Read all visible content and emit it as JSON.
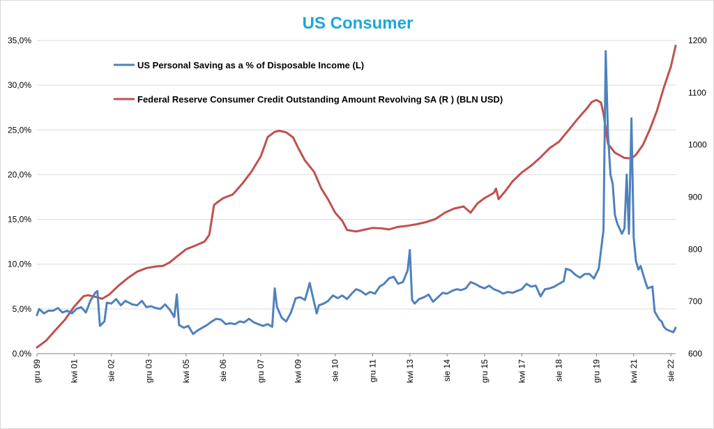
{
  "chart_data": {
    "type": "line",
    "title": "US Consumer",
    "title_color": "#1aa7d8",
    "axis_left": {
      "min": 0,
      "max": 35,
      "step": 5,
      "ticks": [
        "0,0%",
        "5,0%",
        "10,0%",
        "15,0%",
        "20,0%",
        "25,0%",
        "30,0%",
        "35,0%"
      ]
    },
    "axis_right": {
      "min": 600,
      "max": 1200,
      "step": 100,
      "ticks": [
        "600",
        "700",
        "800",
        "900",
        "1000",
        "1100",
        "1200"
      ]
    },
    "x_range": [
      1999.92,
      2022.75
    ],
    "x_ticks": [
      {
        "label": "gru 99",
        "x": 1999.92
      },
      {
        "label": "kwi 01",
        "x": 2001.25
      },
      {
        "label": "sie 02",
        "x": 2002.58
      },
      {
        "label": "gru 03",
        "x": 2003.92
      },
      {
        "label": "kwi 05",
        "x": 2005.25
      },
      {
        "label": "sie 06",
        "x": 2006.58
      },
      {
        "label": "gru 07",
        "x": 2007.92
      },
      {
        "label": "kwi 09",
        "x": 2009.25
      },
      {
        "label": "sie 10",
        "x": 2010.58
      },
      {
        "label": "gru 11",
        "x": 2011.92
      },
      {
        "label": "kwi 13",
        "x": 2013.25
      },
      {
        "label": "sie 14",
        "x": 2014.58
      },
      {
        "label": "gru 15",
        "x": 2015.92
      },
      {
        "label": "kwi 17",
        "x": 2017.25
      },
      {
        "label": "sie 18",
        "x": 2018.58
      },
      {
        "label": "gru 19",
        "x": 2019.92
      },
      {
        "label": "kwi 21",
        "x": 2021.25
      },
      {
        "label": "sie 22",
        "x": 2022.58
      }
    ],
    "grid": "horizontal",
    "legend_position": "top-left",
    "series": [
      {
        "name": "US Personal Saving as a % of Disposable Income (L)",
        "axis": "left",
        "color": "#4f81bd",
        "points": [
          [
            1999.92,
            4.3
          ],
          [
            2000.0,
            5.0
          ],
          [
            2000.17,
            4.5
          ],
          [
            2000.33,
            4.8
          ],
          [
            2000.5,
            4.8
          ],
          [
            2000.67,
            5.1
          ],
          [
            2000.83,
            4.6
          ],
          [
            2001.0,
            4.8
          ],
          [
            2001.17,
            4.5
          ],
          [
            2001.33,
            5.0
          ],
          [
            2001.5,
            5.2
          ],
          [
            2001.67,
            4.6
          ],
          [
            2001.83,
            5.9
          ],
          [
            2002.0,
            6.8
          ],
          [
            2002.08,
            7.0
          ],
          [
            2002.17,
            3.1
          ],
          [
            2002.33,
            3.6
          ],
          [
            2002.42,
            5.7
          ],
          [
            2002.58,
            5.6
          ],
          [
            2002.75,
            6.1
          ],
          [
            2002.92,
            5.4
          ],
          [
            2003.08,
            5.9
          ],
          [
            2003.33,
            5.5
          ],
          [
            2003.5,
            5.4
          ],
          [
            2003.67,
            5.9
          ],
          [
            2003.83,
            5.2
          ],
          [
            2004.0,
            5.3
          ],
          [
            2004.17,
            5.1
          ],
          [
            2004.33,
            5.0
          ],
          [
            2004.5,
            5.5
          ],
          [
            2004.67,
            4.9
          ],
          [
            2004.83,
            4.1
          ],
          [
            2004.92,
            6.6
          ],
          [
            2005.0,
            3.2
          ],
          [
            2005.17,
            2.9
          ],
          [
            2005.33,
            3.1
          ],
          [
            2005.5,
            2.2
          ],
          [
            2005.67,
            2.6
          ],
          [
            2005.83,
            2.9
          ],
          [
            2006.0,
            3.2
          ],
          [
            2006.17,
            3.6
          ],
          [
            2006.33,
            3.9
          ],
          [
            2006.5,
            3.8
          ],
          [
            2006.67,
            3.3
          ],
          [
            2006.83,
            3.4
          ],
          [
            2007.0,
            3.3
          ],
          [
            2007.17,
            3.6
          ],
          [
            2007.33,
            3.5
          ],
          [
            2007.5,
            3.9
          ],
          [
            2007.67,
            3.5
          ],
          [
            2007.83,
            3.3
          ],
          [
            2008.0,
            3.1
          ],
          [
            2008.17,
            3.3
          ],
          [
            2008.33,
            3.0
          ],
          [
            2008.42,
            7.3
          ],
          [
            2008.5,
            5.2
          ],
          [
            2008.67,
            4.0
          ],
          [
            2008.83,
            3.6
          ],
          [
            2009.0,
            4.6
          ],
          [
            2009.17,
            6.2
          ],
          [
            2009.33,
            6.3
          ],
          [
            2009.5,
            6.0
          ],
          [
            2009.67,
            7.9
          ],
          [
            2009.83,
            5.7
          ],
          [
            2009.92,
            4.5
          ],
          [
            2010.0,
            5.4
          ],
          [
            2010.17,
            5.6
          ],
          [
            2010.33,
            5.9
          ],
          [
            2010.5,
            6.5
          ],
          [
            2010.67,
            6.2
          ],
          [
            2010.83,
            6.5
          ],
          [
            2011.0,
            6.1
          ],
          [
            2011.17,
            6.7
          ],
          [
            2011.33,
            7.2
          ],
          [
            2011.5,
            7.0
          ],
          [
            2011.67,
            6.6
          ],
          [
            2011.83,
            6.9
          ],
          [
            2012.0,
            6.7
          ],
          [
            2012.17,
            7.5
          ],
          [
            2012.33,
            7.8
          ],
          [
            2012.5,
            8.4
          ],
          [
            2012.67,
            8.6
          ],
          [
            2012.83,
            7.8
          ],
          [
            2013.0,
            8.0
          ],
          [
            2013.17,
            9.3
          ],
          [
            2013.25,
            11.6
          ],
          [
            2013.33,
            6.0
          ],
          [
            2013.42,
            5.6
          ],
          [
            2013.58,
            6.1
          ],
          [
            2013.75,
            6.3
          ],
          [
            2013.92,
            6.6
          ],
          [
            2014.08,
            5.8
          ],
          [
            2014.25,
            6.3
          ],
          [
            2014.42,
            6.8
          ],
          [
            2014.58,
            6.7
          ],
          [
            2014.75,
            7.0
          ],
          [
            2014.92,
            7.2
          ],
          [
            2015.08,
            7.1
          ],
          [
            2015.25,
            7.3
          ],
          [
            2015.42,
            8.0
          ],
          [
            2015.58,
            7.8
          ],
          [
            2015.75,
            7.5
          ],
          [
            2015.92,
            7.3
          ],
          [
            2016.08,
            7.6
          ],
          [
            2016.25,
            7.2
          ],
          [
            2016.42,
            7.0
          ],
          [
            2016.58,
            6.7
          ],
          [
            2016.75,
            6.9
          ],
          [
            2016.92,
            6.8
          ],
          [
            2017.08,
            7.0
          ],
          [
            2017.25,
            7.2
          ],
          [
            2017.42,
            7.8
          ],
          [
            2017.58,
            7.5
          ],
          [
            2017.75,
            7.6
          ],
          [
            2017.92,
            6.4
          ],
          [
            2018.08,
            7.2
          ],
          [
            2018.25,
            7.3
          ],
          [
            2018.42,
            7.5
          ],
          [
            2018.58,
            7.8
          ],
          [
            2018.75,
            8.1
          ],
          [
            2018.83,
            9.5
          ],
          [
            2019.0,
            9.3
          ],
          [
            2019.17,
            8.8
          ],
          [
            2019.33,
            8.5
          ],
          [
            2019.5,
            8.9
          ],
          [
            2019.67,
            8.9
          ],
          [
            2019.83,
            8.4
          ],
          [
            2019.92,
            9.0
          ],
          [
            2020.0,
            9.5
          ],
          [
            2020.17,
            13.8
          ],
          [
            2020.25,
            33.8
          ],
          [
            2020.33,
            24.6
          ],
          [
            2020.42,
            20.0
          ],
          [
            2020.5,
            19.0
          ],
          [
            2020.58,
            15.5
          ],
          [
            2020.67,
            14.5
          ],
          [
            2020.83,
            13.4
          ],
          [
            2020.92,
            14.0
          ],
          [
            2021.0,
            20.0
          ],
          [
            2021.08,
            13.4
          ],
          [
            2021.17,
            26.3
          ],
          [
            2021.25,
            13.0
          ],
          [
            2021.33,
            10.4
          ],
          [
            2021.42,
            9.4
          ],
          [
            2021.5,
            9.8
          ],
          [
            2021.67,
            8.0
          ],
          [
            2021.75,
            7.3
          ],
          [
            2021.92,
            7.5
          ],
          [
            2022.0,
            4.7
          ],
          [
            2022.17,
            3.8
          ],
          [
            2022.25,
            3.6
          ],
          [
            2022.33,
            3.0
          ],
          [
            2022.42,
            2.7
          ],
          [
            2022.58,
            2.5
          ],
          [
            2022.67,
            2.4
          ],
          [
            2022.75,
            2.9
          ]
        ]
      },
      {
        "name": "Federal Reserve Consumer Credit Outstanding Amount Revolving SA (R ) (BLN USD)",
        "axis": "right",
        "color": "#c0504d",
        "points": [
          [
            1999.92,
            612
          ],
          [
            2000.25,
            625
          ],
          [
            2000.58,
            645
          ],
          [
            2000.92,
            665
          ],
          [
            2001.25,
            690
          ],
          [
            2001.58,
            710
          ],
          [
            2001.75,
            712
          ],
          [
            2002.08,
            708
          ],
          [
            2002.25,
            705
          ],
          [
            2002.5,
            713
          ],
          [
            2002.83,
            730
          ],
          [
            2003.17,
            745
          ],
          [
            2003.5,
            757
          ],
          [
            2003.83,
            764
          ],
          [
            2004.17,
            767
          ],
          [
            2004.42,
            768
          ],
          [
            2004.67,
            775
          ],
          [
            2004.92,
            786
          ],
          [
            2005.25,
            800
          ],
          [
            2005.58,
            807
          ],
          [
            2005.92,
            815
          ],
          [
            2006.08,
            828
          ],
          [
            2006.25,
            885
          ],
          [
            2006.42,
            892
          ],
          [
            2006.58,
            898
          ],
          [
            2006.92,
            905
          ],
          [
            2007.25,
            925
          ],
          [
            2007.58,
            948
          ],
          [
            2007.92,
            978
          ],
          [
            2008.17,
            1015
          ],
          [
            2008.42,
            1025
          ],
          [
            2008.58,
            1027
          ],
          [
            2008.83,
            1024
          ],
          [
            2009.08,
            1014
          ],
          [
            2009.25,
            995
          ],
          [
            2009.5,
            970
          ],
          [
            2009.83,
            948
          ],
          [
            2010.08,
            917
          ],
          [
            2010.33,
            895
          ],
          [
            2010.58,
            870
          ],
          [
            2010.83,
            855
          ],
          [
            2011.0,
            837
          ],
          [
            2011.33,
            834
          ],
          [
            2011.67,
            838
          ],
          [
            2011.92,
            841
          ],
          [
            2012.25,
            840
          ],
          [
            2012.5,
            838
          ],
          [
            2012.83,
            843
          ],
          [
            2013.17,
            845
          ],
          [
            2013.5,
            848
          ],
          [
            2013.83,
            852
          ],
          [
            2014.17,
            858
          ],
          [
            2014.5,
            870
          ],
          [
            2014.83,
            878
          ],
          [
            2015.17,
            882
          ],
          [
            2015.42,
            870
          ],
          [
            2015.67,
            888
          ],
          [
            2015.92,
            898
          ],
          [
            2016.25,
            908
          ],
          [
            2016.33,
            916
          ],
          [
            2016.42,
            896
          ],
          [
            2016.67,
            912
          ],
          [
            2016.92,
            930
          ],
          [
            2017.25,
            947
          ],
          [
            2017.58,
            960
          ],
          [
            2017.92,
            976
          ],
          [
            2018.25,
            994
          ],
          [
            2018.58,
            1006
          ],
          [
            2018.92,
            1028
          ],
          [
            2019.25,
            1050
          ],
          [
            2019.58,
            1070
          ],
          [
            2019.75,
            1082
          ],
          [
            2019.92,
            1086
          ],
          [
            2020.08,
            1081
          ],
          [
            2020.17,
            1060
          ],
          [
            2020.33,
            1002
          ],
          [
            2020.58,
            985
          ],
          [
            2020.92,
            975
          ],
          [
            2021.17,
            974
          ],
          [
            2021.33,
            981
          ],
          [
            2021.58,
            1000
          ],
          [
            2021.83,
            1030
          ],
          [
            2022.08,
            1065
          ],
          [
            2022.33,
            1110
          ],
          [
            2022.58,
            1150
          ],
          [
            2022.75,
            1190
          ]
        ]
      }
    ]
  }
}
